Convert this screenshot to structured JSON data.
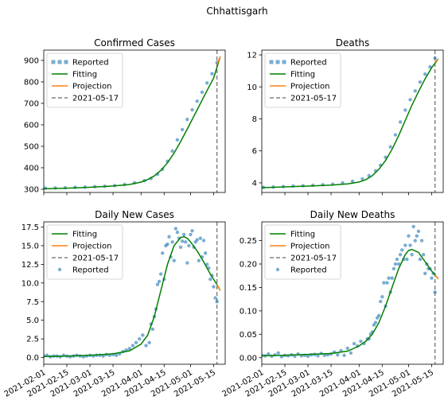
{
  "figure": {
    "title": "Chhattisgarh"
  },
  "chart_data": [
    {
      "type": "line",
      "title": "Confirmed Cases",
      "xlim": [
        "2021-02-01",
        "2021-05-22"
      ],
      "ylim": [
        285,
        948
      ],
      "x_ticks": [
        "2021-02-01",
        "2021-02-15",
        "2021-03-01",
        "2021-03-15",
        "2021-04-01",
        "2021-04-15",
        "2021-05-01",
        "2021-05-15"
      ],
      "x_ticklabels_visible": false,
      "y_ticks": [
        300,
        400,
        500,
        600,
        700,
        800,
        900
      ],
      "y_ticklabels": [
        "300",
        "400",
        "500",
        "600",
        "700",
        "800",
        "900"
      ],
      "legend": {
        "loc": "upper left",
        "entries": [
          {
            "label": "Reported",
            "kind": "marker"
          },
          {
            "label": "Fitting",
            "kind": "line"
          },
          {
            "label": "Projection",
            "kind": "line"
          },
          {
            "label": "2021-05-17",
            "kind": "dashed"
          }
        ]
      },
      "vline": {
        "x": "2021-05-17",
        "label": "2021-05-17"
      },
      "series": [
        {
          "name": "Reported",
          "style": "points",
          "x": [
            "2021-02-02",
            "2021-02-08",
            "2021-02-14",
            "2021-02-20",
            "2021-02-26",
            "2021-03-04",
            "2021-03-10",
            "2021-03-16",
            "2021-03-22",
            "2021-03-28",
            "2021-04-03",
            "2021-04-07",
            "2021-04-11",
            "2021-04-14",
            "2021-04-17",
            "2021-04-20",
            "2021-04-23",
            "2021-04-26",
            "2021-04-29",
            "2021-05-02",
            "2021-05-05",
            "2021-05-08",
            "2021-05-11",
            "2021-05-14",
            "2021-05-17"
          ],
          "y": [
            305,
            306,
            307,
            309,
            310,
            312,
            314,
            317,
            322,
            330,
            340,
            350,
            370,
            393,
            430,
            478,
            530,
            578,
            625,
            670,
            710,
            752,
            795,
            838,
            890
          ]
        },
        {
          "name": "Fitting",
          "style": "line",
          "x": [
            "2021-02-01",
            "2021-02-15",
            "2021-03-01",
            "2021-03-15",
            "2021-03-25",
            "2021-04-01",
            "2021-04-05",
            "2021-04-09",
            "2021-04-13",
            "2021-04-17",
            "2021-04-21",
            "2021-04-25",
            "2021-04-29",
            "2021-05-03",
            "2021-05-07",
            "2021-05-11",
            "2021-05-15",
            "2021-05-19"
          ],
          "y": [
            302,
            305,
            309,
            315,
            322,
            333,
            345,
            362,
            388,
            423,
            468,
            522,
            580,
            640,
            700,
            760,
            818,
            918
          ]
        },
        {
          "name": "Projection",
          "style": "line",
          "x": [
            "2021-05-17",
            "2021-05-19"
          ],
          "y": [
            880,
            918
          ]
        }
      ]
    },
    {
      "type": "line",
      "title": "Deaths",
      "xlim": [
        "2021-02-01",
        "2021-05-22"
      ],
      "ylim": [
        3.4,
        12.3
      ],
      "x_ticks": [
        "2021-02-01",
        "2021-02-15",
        "2021-03-01",
        "2021-03-15",
        "2021-04-01",
        "2021-04-15",
        "2021-05-01",
        "2021-05-15"
      ],
      "x_ticklabels_visible": false,
      "y_ticks": [
        4,
        6,
        8,
        10,
        12
      ],
      "y_ticklabels": [
        "4",
        "6",
        "8",
        "10",
        "12"
      ],
      "legend": {
        "loc": "upper left",
        "entries": [
          {
            "label": "Reported",
            "kind": "marker"
          },
          {
            "label": "Fitting",
            "kind": "line"
          },
          {
            "label": "Projection",
            "kind": "line"
          },
          {
            "label": "2021-05-17",
            "kind": "dashed"
          }
        ]
      },
      "vline": {
        "x": "2021-05-17",
        "label": "2021-05-17"
      },
      "series": [
        {
          "name": "Reported",
          "style": "points",
          "x": [
            "2021-02-02",
            "2021-02-08",
            "2021-02-14",
            "2021-02-20",
            "2021-02-26",
            "2021-03-04",
            "2021-03-10",
            "2021-03-16",
            "2021-03-22",
            "2021-03-28",
            "2021-04-03",
            "2021-04-07",
            "2021-04-11",
            "2021-04-14",
            "2021-04-17",
            "2021-04-20",
            "2021-04-23",
            "2021-04-26",
            "2021-04-29",
            "2021-05-02",
            "2021-05-05",
            "2021-05-08",
            "2021-05-11",
            "2021-05-14",
            "2021-05-17"
          ],
          "y": [
            3.72,
            3.74,
            3.77,
            3.8,
            3.82,
            3.85,
            3.88,
            3.92,
            4.0,
            4.1,
            4.25,
            4.45,
            4.75,
            5.1,
            5.6,
            6.25,
            7.0,
            7.8,
            8.55,
            9.2,
            9.75,
            10.3,
            10.8,
            11.25,
            11.8
          ]
        },
        {
          "name": "Fitting",
          "style": "line",
          "x": [
            "2021-02-01",
            "2021-02-15",
            "2021-03-01",
            "2021-03-15",
            "2021-03-25",
            "2021-04-01",
            "2021-04-05",
            "2021-04-09",
            "2021-04-13",
            "2021-04-17",
            "2021-04-21",
            "2021-04-25",
            "2021-04-29",
            "2021-05-03",
            "2021-05-07",
            "2021-05-11",
            "2021-05-15",
            "2021-05-19"
          ],
          "y": [
            3.7,
            3.75,
            3.8,
            3.86,
            3.93,
            4.05,
            4.2,
            4.45,
            4.85,
            5.4,
            6.1,
            6.95,
            7.9,
            8.85,
            9.7,
            10.5,
            11.2,
            11.75
          ]
        },
        {
          "name": "Projection",
          "style": "line",
          "x": [
            "2021-05-17",
            "2021-05-19"
          ],
          "y": [
            11.55,
            11.75
          ]
        }
      ]
    },
    {
      "type": "line",
      "title": "Daily New Cases",
      "xlim": [
        "2021-02-01",
        "2021-05-22"
      ],
      "ylim": [
        -0.9,
        18.2
      ],
      "x_ticks": [
        "2021-02-01",
        "2021-02-15",
        "2021-03-01",
        "2021-03-15",
        "2021-04-01",
        "2021-04-15",
        "2021-05-01",
        "2021-05-15"
      ],
      "x_ticklabels": [
        "2021-02-01",
        "2021-02-15",
        "2021-03-01",
        "2021-03-15",
        "2021-04-01",
        "2021-04-15",
        "2021-05-01",
        "2021-05-15"
      ],
      "y_ticks": [
        0.0,
        2.5,
        5.0,
        7.5,
        10.0,
        12.5,
        15.0,
        17.5
      ],
      "y_ticklabels": [
        "0.0",
        "2.5",
        "5.0",
        "7.5",
        "10.0",
        "12.5",
        "15.0",
        "17.5"
      ],
      "legend": {
        "loc": "upper left",
        "entries": [
          {
            "label": "Fitting",
            "kind": "line"
          },
          {
            "label": "Projection",
            "kind": "line"
          },
          {
            "label": "2021-05-17",
            "kind": "dashed"
          },
          {
            "label": "Reported",
            "kind": "dot"
          }
        ]
      },
      "vline": {
        "x": "2021-05-17",
        "label": "2021-05-17"
      },
      "series": [
        {
          "name": "Reported",
          "style": "points",
          "x": [
            "2021-02-01",
            "2021-02-03",
            "2021-02-05",
            "2021-02-07",
            "2021-02-09",
            "2021-02-11",
            "2021-02-13",
            "2021-02-15",
            "2021-02-17",
            "2021-02-19",
            "2021-02-21",
            "2021-02-23",
            "2021-02-25",
            "2021-02-27",
            "2021-03-01",
            "2021-03-03",
            "2021-03-05",
            "2021-03-07",
            "2021-03-09",
            "2021-03-11",
            "2021-03-13",
            "2021-03-15",
            "2021-03-17",
            "2021-03-19",
            "2021-03-21",
            "2021-03-23",
            "2021-03-25",
            "2021-03-27",
            "2021-03-29",
            "2021-03-31",
            "2021-04-02",
            "2021-04-04",
            "2021-04-06",
            "2021-04-07",
            "2021-04-08",
            "2021-04-09",
            "2021-04-10",
            "2021-04-11",
            "2021-04-12",
            "2021-04-13",
            "2021-04-14",
            "2021-04-15",
            "2021-04-16",
            "2021-04-17",
            "2021-04-18",
            "2021-04-19",
            "2021-04-20",
            "2021-04-21",
            "2021-04-22",
            "2021-04-23",
            "2021-04-24",
            "2021-04-25",
            "2021-04-26",
            "2021-04-27",
            "2021-04-28",
            "2021-04-29",
            "2021-04-30",
            "2021-05-01",
            "2021-05-02",
            "2021-05-03",
            "2021-05-04",
            "2021-05-05",
            "2021-05-06",
            "2021-05-07",
            "2021-05-08",
            "2021-05-09",
            "2021-05-10",
            "2021-05-11",
            "2021-05-12",
            "2021-05-13",
            "2021-05-14",
            "2021-05-15",
            "2021-05-16",
            "2021-05-17"
          ],
          "y": [
            0.2,
            0.3,
            0.1,
            0.2,
            0.2,
            0.1,
            0.3,
            0.2,
            0.1,
            0.2,
            0.3,
            0.2,
            0.1,
            0.2,
            0.3,
            0.2,
            0.3,
            0.3,
            0.2,
            0.4,
            0.3,
            0.4,
            0.3,
            0.5,
            0.8,
            1.0,
            1.2,
            1.6,
            2.0,
            2.5,
            3.0,
            1.6,
            2.0,
            4.5,
            3.8,
            5.5,
            6.5,
            9.8,
            10.2,
            11.2,
            14.0,
            10.5,
            15.0,
            15.2,
            16.2,
            13.5,
            15.5,
            13.0,
            17.3,
            16.8,
            16.0,
            14.8,
            15.6,
            16.5,
            15.5,
            12.7,
            15.0,
            16.5,
            17.0,
            14.8,
            15.5,
            15.8,
            13.0,
            16.0,
            13.5,
            15.7,
            14.0,
            12.5,
            12.0,
            10.5,
            11.0,
            9.5,
            8.0,
            7.5
          ]
        },
        {
          "name": "Fitting",
          "style": "line",
          "x": [
            "2021-02-01",
            "2021-02-15",
            "2021-03-01",
            "2021-03-15",
            "2021-03-25",
            "2021-04-01",
            "2021-04-05",
            "2021-04-09",
            "2021-04-13",
            "2021-04-17",
            "2021-04-21",
            "2021-04-25",
            "2021-04-27",
            "2021-04-29",
            "2021-05-01",
            "2021-05-05",
            "2021-05-09",
            "2021-05-13",
            "2021-05-17",
            "2021-05-19"
          ],
          "y": [
            0.15,
            0.2,
            0.3,
            0.5,
            0.9,
            1.8,
            3.0,
            5.5,
            9.0,
            12.5,
            15.0,
            16.1,
            16.2,
            16.0,
            15.5,
            14.3,
            12.8,
            11.2,
            9.8,
            9.0
          ]
        },
        {
          "name": "Projection",
          "style": "line",
          "x": [
            "2021-05-17",
            "2021-05-19"
          ],
          "y": [
            9.8,
            9.0
          ]
        }
      ]
    },
    {
      "type": "line",
      "title": "Daily New Deaths",
      "xlim": [
        "2021-02-01",
        "2021-05-22"
      ],
      "ylim": [
        -0.014,
        0.29
      ],
      "x_ticks": [
        "2021-02-01",
        "2021-02-15",
        "2021-03-01",
        "2021-03-15",
        "2021-04-01",
        "2021-04-15",
        "2021-05-01",
        "2021-05-15"
      ],
      "x_ticklabels": [
        "2021-02-01",
        "2021-02-15",
        "2021-03-01",
        "2021-03-15",
        "2021-04-01",
        "2021-04-15",
        "2021-05-01",
        "2021-05-15"
      ],
      "y_ticks": [
        0.0,
        0.05,
        0.1,
        0.15,
        0.2,
        0.25
      ],
      "y_ticklabels": [
        "0.00",
        "0.05",
        "0.10",
        "0.15",
        "0.20",
        "0.25"
      ],
      "legend": {
        "loc": "upper left",
        "entries": [
          {
            "label": "Fitting",
            "kind": "line"
          },
          {
            "label": "Projection",
            "kind": "line"
          },
          {
            "label": "2021-05-17",
            "kind": "dashed"
          },
          {
            "label": "Reported",
            "kind": "dot"
          }
        ]
      },
      "vline": {
        "x": "2021-05-17",
        "label": "2021-05-17"
      },
      "series": [
        {
          "name": "Reported",
          "style": "points",
          "x": [
            "2021-02-01",
            "2021-02-03",
            "2021-02-05",
            "2021-02-07",
            "2021-02-09",
            "2021-02-11",
            "2021-02-13",
            "2021-02-15",
            "2021-02-17",
            "2021-02-19",
            "2021-02-21",
            "2021-02-23",
            "2021-02-25",
            "2021-02-27",
            "2021-03-01",
            "2021-03-03",
            "2021-03-05",
            "2021-03-07",
            "2021-03-09",
            "2021-03-11",
            "2021-03-13",
            "2021-03-15",
            "2021-03-17",
            "2021-03-19",
            "2021-03-21",
            "2021-03-23",
            "2021-03-25",
            "2021-03-27",
            "2021-03-29",
            "2021-03-31",
            "2021-04-02",
            "2021-04-04",
            "2021-04-06",
            "2021-04-07",
            "2021-04-08",
            "2021-04-09",
            "2021-04-10",
            "2021-04-11",
            "2021-04-12",
            "2021-04-13",
            "2021-04-14",
            "2021-04-15",
            "2021-04-16",
            "2021-04-17",
            "2021-04-18",
            "2021-04-19",
            "2021-04-20",
            "2021-04-21",
            "2021-04-22",
            "2021-04-23",
            "2021-04-24",
            "2021-04-25",
            "2021-04-26",
            "2021-04-27",
            "2021-04-28",
            "2021-04-29",
            "2021-04-30",
            "2021-05-01",
            "2021-05-02",
            "2021-05-03",
            "2021-05-04",
            "2021-05-05",
            "2021-05-06",
            "2021-05-07",
            "2021-05-08",
            "2021-05-09",
            "2021-05-10",
            "2021-05-11",
            "2021-05-12",
            "2021-05-13",
            "2021-05-14",
            "2021-05-15",
            "2021-05-16",
            "2021-05-17"
          ],
          "y": [
            0.005,
            0.004,
            0.008,
            0.003,
            0.006,
            0.01,
            0.002,
            0.005,
            0.004,
            0.006,
            0.003,
            0.008,
            0.004,
            0.005,
            0.003,
            0.006,
            0.007,
            0.004,
            0.009,
            0.005,
            0.006,
            0.008,
            0.012,
            0.006,
            0.015,
            0.005,
            0.02,
            0.01,
            0.03,
            0.025,
            0.035,
            0.03,
            0.04,
            0.04,
            0.05,
            0.055,
            0.07,
            0.075,
            0.085,
            0.09,
            0.12,
            0.13,
            0.16,
            0.11,
            0.16,
            0.17,
            0.14,
            0.17,
            0.19,
            0.2,
            0.21,
            0.2,
            0.22,
            0.23,
            0.21,
            0.24,
            0.21,
            0.26,
            0.24,
            0.22,
            0.28,
            0.25,
            0.26,
            0.27,
            0.21,
            0.25,
            0.22,
            0.18,
            0.2,
            0.19,
            0.19,
            0.17,
            0.18,
            0.14
          ]
        },
        {
          "name": "Fitting",
          "style": "line",
          "x": [
            "2021-02-01",
            "2021-02-15",
            "2021-03-01",
            "2021-03-15",
            "2021-03-25",
            "2021-04-01",
            "2021-04-05",
            "2021-04-09",
            "2021-04-13",
            "2021-04-17",
            "2021-04-21",
            "2021-04-25",
            "2021-04-29",
            "2021-05-01",
            "2021-05-03",
            "2021-05-07",
            "2021-05-11",
            "2021-05-15",
            "2021-05-19"
          ],
          "y": [
            0.004,
            0.005,
            0.007,
            0.009,
            0.014,
            0.025,
            0.035,
            0.05,
            0.075,
            0.11,
            0.15,
            0.19,
            0.22,
            0.229,
            0.231,
            0.225,
            0.205,
            0.185,
            0.168
          ]
        },
        {
          "name": "Projection",
          "style": "line",
          "x": [
            "2021-05-17",
            "2021-05-19"
          ],
          "y": [
            0.176,
            0.168
          ]
        }
      ]
    }
  ],
  "colors": {
    "reported": "#1f77b4",
    "fitting": "#008000",
    "projection": "#ff7f0e",
    "vline": "#808080",
    "axes": "#000000",
    "legend_border": "#cccccc"
  }
}
